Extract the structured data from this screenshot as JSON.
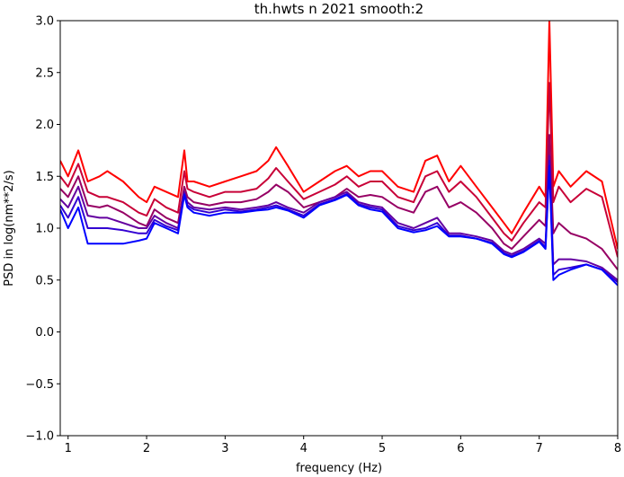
{
  "chart_data": {
    "type": "line",
    "title": "th.hwts n 2021 smooth:2",
    "xlabel": "frequency (Hz)",
    "ylabel": "PSD in log(nm**2/s)",
    "xlim": [
      0.9,
      8.0
    ],
    "ylim": [
      -1.0,
      3.0
    ],
    "xticks": [
      1,
      2,
      3,
      4,
      5,
      6,
      7,
      8
    ],
    "xtick_labels": [
      "1",
      "2",
      "3",
      "4",
      "5",
      "6",
      "7",
      "8"
    ],
    "yticks": [
      -1.0,
      -0.5,
      0.0,
      0.5,
      1.0,
      1.5,
      2.0,
      2.5,
      3.0
    ],
    "ytick_labels": [
      "−1.0",
      "−0.5",
      "0.0",
      "0.5",
      "1.0",
      "1.5",
      "2.0",
      "2.5",
      "3.0"
    ],
    "grid": false,
    "legend": "none",
    "x": [
      0.9,
      1.0,
      1.13,
      1.25,
      1.4,
      1.5,
      1.7,
      1.9,
      2.0,
      2.1,
      2.25,
      2.4,
      2.48,
      2.52,
      2.6,
      2.8,
      3.0,
      3.2,
      3.4,
      3.55,
      3.65,
      3.8,
      4.0,
      4.2,
      4.4,
      4.55,
      4.7,
      4.85,
      5.0,
      5.2,
      5.4,
      5.55,
      5.7,
      5.85,
      6.0,
      6.2,
      6.4,
      6.55,
      6.65,
      6.8,
      7.0,
      7.08,
      7.13,
      7.18,
      7.25,
      7.4,
      7.6,
      7.8,
      8.0
    ],
    "series": [
      {
        "color": "#ff0000",
        "values": [
          1.65,
          1.5,
          1.75,
          1.45,
          1.5,
          1.55,
          1.45,
          1.3,
          1.25,
          1.4,
          1.35,
          1.3,
          1.75,
          1.45,
          1.45,
          1.4,
          1.45,
          1.5,
          1.55,
          1.65,
          1.78,
          1.6,
          1.35,
          1.45,
          1.55,
          1.6,
          1.5,
          1.55,
          1.55,
          1.4,
          1.35,
          1.65,
          1.7,
          1.45,
          1.6,
          1.4,
          1.2,
          1.05,
          0.95,
          1.15,
          1.4,
          1.3,
          3.0,
          1.4,
          1.55,
          1.4,
          1.55,
          1.45,
          0.8
        ]
      },
      {
        "color": "#c80037",
        "values": [
          1.5,
          1.4,
          1.62,
          1.35,
          1.3,
          1.3,
          1.25,
          1.15,
          1.12,
          1.28,
          1.2,
          1.15,
          1.55,
          1.38,
          1.35,
          1.3,
          1.35,
          1.35,
          1.38,
          1.48,
          1.58,
          1.45,
          1.28,
          1.35,
          1.42,
          1.5,
          1.4,
          1.45,
          1.45,
          1.3,
          1.25,
          1.5,
          1.55,
          1.35,
          1.45,
          1.3,
          1.1,
          0.95,
          0.88,
          1.05,
          1.25,
          1.2,
          2.4,
          1.25,
          1.4,
          1.25,
          1.38,
          1.3,
          0.72
        ]
      },
      {
        "color": "#960064",
        "values": [
          1.38,
          1.3,
          1.5,
          1.22,
          1.2,
          1.22,
          1.15,
          1.05,
          1.02,
          1.18,
          1.1,
          1.05,
          1.4,
          1.3,
          1.25,
          1.22,
          1.25,
          1.25,
          1.28,
          1.35,
          1.42,
          1.35,
          1.2,
          1.25,
          1.3,
          1.38,
          1.3,
          1.32,
          1.3,
          1.2,
          1.15,
          1.35,
          1.4,
          1.2,
          1.25,
          1.15,
          1.0,
          0.85,
          0.8,
          0.92,
          1.08,
          1.02,
          1.9,
          0.95,
          1.05,
          0.95,
          0.9,
          0.8,
          0.6
        ]
      },
      {
        "color": "#6400a0",
        "values": [
          1.28,
          1.2,
          1.4,
          1.12,
          1.1,
          1.1,
          1.05,
          1.0,
          1.0,
          1.12,
          1.05,
          1.0,
          1.35,
          1.25,
          1.2,
          1.18,
          1.2,
          1.18,
          1.2,
          1.22,
          1.25,
          1.2,
          1.15,
          1.25,
          1.3,
          1.35,
          1.25,
          1.22,
          1.2,
          1.05,
          1.0,
          1.05,
          1.1,
          0.95,
          0.95,
          0.92,
          0.88,
          0.78,
          0.75,
          0.8,
          0.9,
          0.85,
          1.7,
          0.65,
          0.7,
          0.7,
          0.68,
          0.62,
          0.5
        ]
      },
      {
        "color": "#3200d2",
        "values": [
          1.22,
          1.1,
          1.3,
          1.0,
          1.0,
          1.0,
          0.98,
          0.95,
          0.95,
          1.08,
          1.02,
          0.98,
          1.33,
          1.22,
          1.18,
          1.15,
          1.18,
          1.16,
          1.18,
          1.2,
          1.22,
          1.18,
          1.12,
          1.23,
          1.28,
          1.33,
          1.23,
          1.2,
          1.18,
          1.02,
          0.98,
          1.0,
          1.05,
          0.93,
          0.93,
          0.9,
          0.86,
          0.76,
          0.73,
          0.78,
          0.88,
          0.82,
          1.65,
          0.55,
          0.6,
          0.62,
          0.65,
          0.6,
          0.48
        ]
      },
      {
        "color": "#0000ff",
        "values": [
          1.18,
          1.0,
          1.2,
          0.85,
          0.85,
          0.85,
          0.85,
          0.88,
          0.9,
          1.05,
          1.0,
          0.95,
          1.32,
          1.2,
          1.15,
          1.12,
          1.15,
          1.15,
          1.17,
          1.18,
          1.2,
          1.17,
          1.1,
          1.22,
          1.27,
          1.32,
          1.22,
          1.18,
          1.16,
          1.0,
          0.96,
          0.98,
          1.02,
          0.92,
          0.92,
          0.9,
          0.85,
          0.75,
          0.72,
          0.77,
          0.87,
          0.8,
          1.6,
          0.5,
          0.55,
          0.6,
          0.65,
          0.6,
          0.45
        ]
      }
    ]
  }
}
